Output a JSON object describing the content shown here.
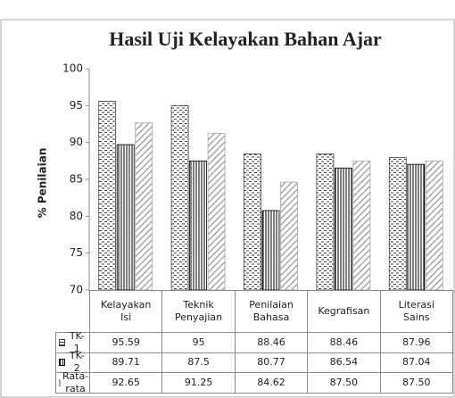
{
  "chart_data": {
    "type": "bar",
    "title": "Hasil Uji Kelayakan Bahan Ajar",
    "y_label": "% Penilaian",
    "categories": [
      "Kelayakan Isi",
      "Teknik Penyajian",
      "Penilaian Bahasa",
      "Kegrafisan",
      "Literasi Sains"
    ],
    "series": [
      {
        "name": "TK-1",
        "color": "#404040",
        "values": [
          95.59,
          95,
          88.46,
          88.46,
          87.96
        ]
      },
      {
        "name": "TK-2",
        "color": "#000000",
        "values": [
          89.71,
          87.5,
          80.77,
          86.54,
          87.04
        ]
      },
      {
        "name": "Rata-rata",
        "color": "#a6a6a6",
        "values": [
          92.65,
          91.25,
          84.62,
          87.5,
          87.5
        ],
        "value_labels": [
          "92.65",
          "91.25",
          "84.62",
          "87.50",
          "87.50"
        ]
      }
    ],
    "ylim": [
      70,
      100
    ],
    "yticks": [
      70,
      75,
      80,
      85,
      90,
      95,
      100
    ],
    "grid": false
  }
}
